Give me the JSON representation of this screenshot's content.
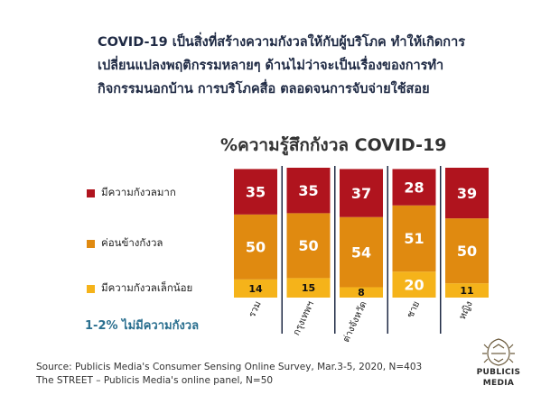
{
  "headline": {
    "lines": [
      "COVID-19 เป็นสิ่งที่สร้างความกังวลให้กับผู้บริโภค ทำให้เกิดการ",
      "เปลี่ยนแปลงพฤติกรรมหลายๆ ด้านไม่ว่าจะเป็นเรื่องของการทำ",
      "กิจกรรมนอกบ้าน  การบริโภคสื่อ ตลอดจนการจับจ่ายใช้สอย"
    ]
  },
  "chart_data": {
    "type": "bar",
    "stacked": true,
    "unit": "%",
    "title": "%ความรู้สึกกังวล COVID-19",
    "categories": [
      "รวม",
      "กรุงเทพฯ",
      "ต่างจังหวัด",
      "ชาย",
      "หญิง"
    ],
    "series": [
      {
        "name": "มีความกังวลเล็กน้อย",
        "color": "#f5b31a",
        "values": [
          14,
          15,
          8,
          20,
          11
        ]
      },
      {
        "name": "ค่อนข้างกังวล",
        "color": "#e08a10",
        "values": [
          50,
          50,
          54,
          51,
          50
        ]
      },
      {
        "name": "มีความกังวลมาก",
        "color": "#b0141e",
        "values": [
          35,
          35,
          37,
          28,
          39
        ]
      }
    ],
    "ylim": [
      0,
      100
    ],
    "grid": false,
    "legend_position": "left",
    "separator_color": "#1f2a44"
  },
  "note": "1-2% ไม่มีความกังวล",
  "source": {
    "lines": [
      "Source: Publicis Media's Consumer Sensing Online Survey, Mar.3-5, 2020, N=403",
      "The STREET – Publicis Media's online panel, N=50"
    ]
  },
  "logo": {
    "icon": "lion-crest-icon",
    "line1": "PUBLICIS",
    "line2": "MEDIA"
  }
}
